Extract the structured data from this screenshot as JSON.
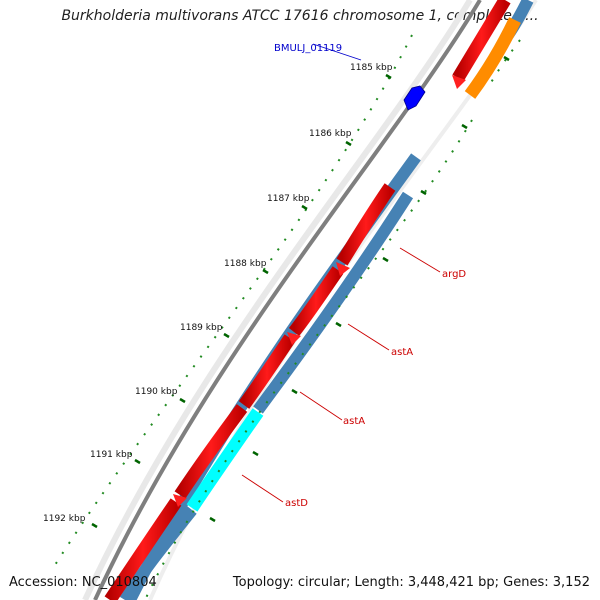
{
  "map": {
    "title": "Burkholderia multivorans ATCC 17616 chromosome 1, complete g...",
    "accession": "Accession: NC_010804",
    "summary": "Topology: circular; Length: 3,448,421 bp; Genes: 3,152"
  },
  "ruler": {
    "ticks": [
      "1185 kbp",
      "1186 kbp",
      "1187 kbp",
      "1188 kbp",
      "1189 kbp",
      "1190 kbp",
      "1191 kbp",
      "1192 kbp"
    ]
  },
  "genes": {
    "bmulj_01119": "BMULJ_01119",
    "argD": "argD",
    "astA_1": "astA",
    "astA_2": "astA",
    "astD": "astD"
  },
  "colors": {
    "background": "#ffffff",
    "backbone": "#888888",
    "forward_cds": "#ff0000",
    "reverse_cds": "#4682b4",
    "highlight_cds": "#00ffff",
    "other_feature": "#ff8c00",
    "marker_feature": "#0000ff",
    "tick_mark": "#006400",
    "gene_label": "#cc0000",
    "marker_label": "#0000cc"
  }
}
